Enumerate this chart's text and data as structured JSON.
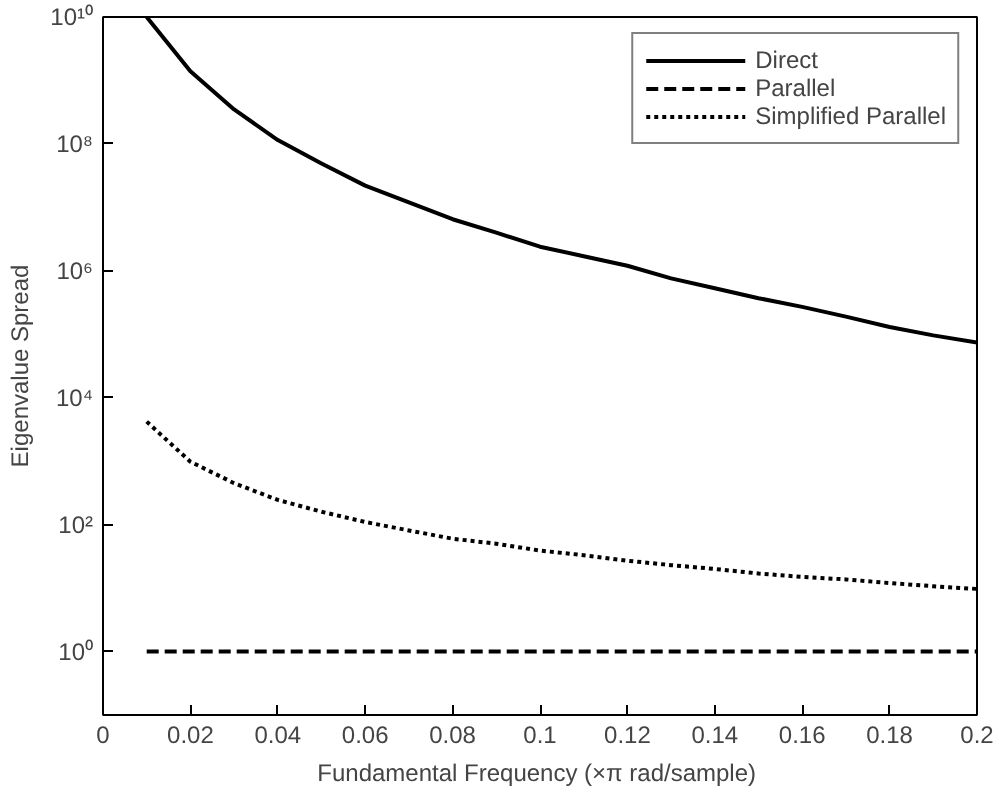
{
  "chart_data": {
    "type": "line",
    "xlabel": "Fundamental Frequency  (×π rad/sample)",
    "ylabel": "Eigenvalue Spread",
    "x": [
      0.01,
      0.02,
      0.03,
      0.04,
      0.05,
      0.06,
      0.07,
      0.08,
      0.09,
      0.1,
      0.11,
      0.12,
      0.13,
      0.14,
      0.15,
      0.16,
      0.17,
      0.18,
      0.19,
      0.2
    ],
    "series": [
      {
        "name": "Direct",
        "color": "#000000",
        "line_style": "solid",
        "values": [
          10000000000.0,
          1400000000.0,
          350000000.0,
          115000000.0,
          49000000.0,
          22000000.0,
          12000000.0,
          6500000.0,
          4000000.0,
          2400000.0,
          1700000.0,
          1200000.0,
          760000.0,
          530000.0,
          370000.0,
          270000.0,
          190000.0,
          130000.0,
          96000.0,
          74000.0
        ]
      },
      {
        "name": "Parallel",
        "color": "#000000",
        "line_style": "dashed",
        "values": [
          1,
          1,
          1,
          1,
          1,
          1,
          1,
          1,
          1,
          1,
          1,
          1,
          1,
          1,
          1,
          1,
          1,
          1,
          1,
          1
        ]
      },
      {
        "name": "Simplified Parallel",
        "color": "#000000",
        "line_style": "dotted",
        "values": [
          4200,
          980,
          450,
          245,
          160,
          110,
          81,
          60,
          50,
          39,
          33,
          27,
          23,
          20,
          17,
          15,
          13.7,
          12,
          10.7,
          9.7
        ]
      }
    ],
    "log": "y",
    "xlim": [
      0,
      0.2
    ],
    "ylim": [
      0.1,
      10000000000.0
    ],
    "xticks": [
      0,
      0.02,
      0.04,
      0.06,
      0.08,
      0.1,
      0.12,
      0.14,
      0.16,
      0.18,
      0.2
    ],
    "yticks": [
      {
        "value": 1,
        "label": "10⁰"
      },
      {
        "value": 100,
        "label": "10²"
      },
      {
        "value": 10000,
        "label": "10⁴"
      },
      {
        "value": 1000000,
        "label": "10⁶"
      },
      {
        "value": 100000000,
        "label": "10⁸"
      },
      {
        "value": 10000000000,
        "label": "10¹⁰"
      }
    ],
    "grid": false,
    "legend": "top right",
    "marker": "none"
  }
}
